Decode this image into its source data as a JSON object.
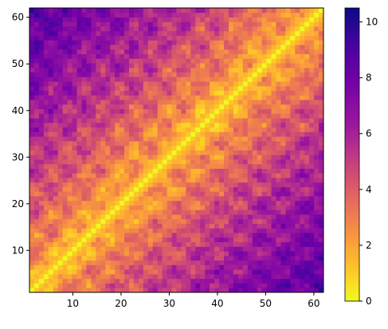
{
  "chart_data": {
    "type": "heatmap",
    "title": "",
    "xlabel": "",
    "ylabel": "",
    "n": 62,
    "xlim": [
      1,
      62
    ],
    "ylim": [
      1,
      62
    ],
    "x_ticks": [
      10,
      20,
      30,
      40,
      50,
      60
    ],
    "y_ticks": [
      10,
      20,
      30,
      40,
      50,
      60
    ],
    "colorbar": {
      "ticks": [
        0,
        2,
        4,
        6,
        8,
        10
      ],
      "vmin": 0,
      "vmax": 10.5,
      "colormap": "plasma_r"
    },
    "matrix_summary": {
      "symmetric": true,
      "diagonal_value": 0,
      "value_grows_with_index_distance": true,
      "max_value": 10.5,
      "max_at": [
        1,
        62
      ]
    }
  }
}
